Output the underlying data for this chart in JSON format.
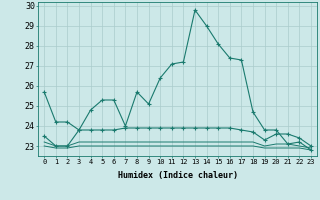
{
  "title": "",
  "xlabel": "Humidex (Indice chaleur)",
  "background_color": "#cce8e8",
  "grid_color": "#aacccc",
  "line_color": "#1a7a6e",
  "x_ticks": [
    0,
    1,
    2,
    3,
    4,
    5,
    6,
    7,
    8,
    9,
    10,
    11,
    12,
    13,
    14,
    15,
    16,
    17,
    18,
    19,
    20,
    21,
    22,
    23
  ],
  "xlim": [
    -0.5,
    23.5
  ],
  "ylim": [
    22.5,
    30.2
  ],
  "y_ticks": [
    23,
    24,
    25,
    26,
    27,
    28,
    29,
    30
  ],
  "series": [
    {
      "x": [
        0,
        1,
        2,
        3,
        4,
        5,
        6,
        7,
        8,
        9,
        10,
        11,
        12,
        13,
        14,
        15,
        16,
        17,
        18,
        19,
        20,
        21,
        22,
        23
      ],
      "y": [
        25.7,
        24.2,
        24.2,
        23.8,
        24.8,
        25.3,
        25.3,
        24.0,
        25.7,
        25.1,
        26.4,
        27.1,
        27.2,
        29.8,
        29.0,
        28.1,
        27.4,
        27.3,
        24.7,
        23.8,
        23.8,
        23.1,
        23.2,
        22.8
      ],
      "marker": true
    },
    {
      "x": [
        0,
        1,
        2,
        3,
        4,
        5,
        6,
        7,
        8,
        9,
        10,
        11,
        12,
        13,
        14,
        15,
        16,
        17,
        18,
        19,
        20,
        21,
        22,
        23
      ],
      "y": [
        23.5,
        23.0,
        23.0,
        23.8,
        23.8,
        23.8,
        23.8,
        23.9,
        23.9,
        23.9,
        23.9,
        23.9,
        23.9,
        23.9,
        23.9,
        23.9,
        23.9,
        23.8,
        23.7,
        23.3,
        23.6,
        23.6,
        23.4,
        23.0
      ],
      "marker": true
    },
    {
      "x": [
        0,
        1,
        2,
        3,
        4,
        5,
        6,
        7,
        8,
        9,
        10,
        11,
        12,
        13,
        14,
        15,
        16,
        17,
        18,
        19,
        20,
        21,
        22,
        23
      ],
      "y": [
        23.2,
        23.0,
        23.0,
        23.2,
        23.2,
        23.2,
        23.2,
        23.2,
        23.2,
        23.2,
        23.2,
        23.2,
        23.2,
        23.2,
        23.2,
        23.2,
        23.2,
        23.2,
        23.2,
        23.0,
        23.1,
        23.1,
        23.0,
        22.9
      ],
      "marker": false
    },
    {
      "x": [
        0,
        1,
        2,
        3,
        4,
        5,
        6,
        7,
        8,
        9,
        10,
        11,
        12,
        13,
        14,
        15,
        16,
        17,
        18,
        19,
        20,
        21,
        22,
        23
      ],
      "y": [
        23.0,
        22.9,
        22.9,
        23.0,
        23.0,
        23.0,
        23.0,
        23.0,
        23.0,
        23.0,
        23.0,
        23.0,
        23.0,
        23.0,
        23.0,
        23.0,
        23.0,
        23.0,
        23.0,
        22.9,
        22.9,
        22.9,
        22.9,
        22.8
      ],
      "marker": false
    }
  ]
}
